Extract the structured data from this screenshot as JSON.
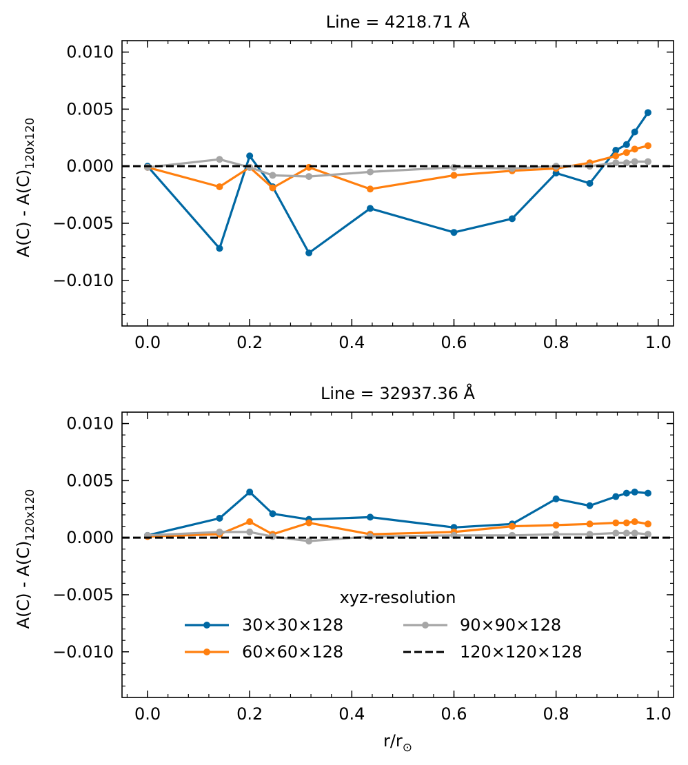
{
  "colors": {
    "series_30": "#0068a3",
    "series_60": "#ff7f0e",
    "series_90": "#a6a6a6",
    "series_120": "#000000"
  },
  "chart_data": [
    {
      "type": "line",
      "title": "Line = 4218.71 Å",
      "xlabel": "",
      "ylabel": "A(C) - A(C)",
      "ylabel_sub": "120x120",
      "xlim": [
        -0.05,
        1.03
      ],
      "ylim": [
        -0.014,
        0.011
      ],
      "xticks": [
        0.0,
        0.2,
        0.4,
        0.6,
        0.8,
        1.0
      ],
      "xtick_labels": [
        "0.0",
        "0.2",
        "0.4",
        "0.6",
        "0.8",
        "1.0"
      ],
      "yticks": [
        0.01,
        0.005,
        0.0,
        -0.005,
        -0.01
      ],
      "ytick_labels": [
        "0.010",
        "0.005",
        "0.000",
        "−0.005",
        "−0.010"
      ],
      "x": [
        0.0,
        0.141,
        0.2,
        0.245,
        0.316,
        0.436,
        0.6,
        0.714,
        0.8,
        0.866,
        0.917,
        0.938,
        0.954,
        0.98
      ],
      "series": [
        {
          "name": "30×30×128",
          "key": "s30",
          "values": [
            0.0,
            -0.0072,
            0.0009,
            -0.0018,
            -0.0076,
            -0.0037,
            -0.0058,
            -0.0046,
            -0.0006,
            -0.0015,
            0.0014,
            0.0019,
            0.003,
            0.0047
          ]
        },
        {
          "name": "60×60×128",
          "key": "s60",
          "values": [
            -0.0001,
            -0.0018,
            -0.0001,
            -0.0019,
            -0.0001,
            -0.002,
            -0.0008,
            -0.0004,
            -0.0002,
            0.0003,
            0.0009,
            0.0012,
            0.0015,
            0.0018
          ]
        },
        {
          "name": "90×90×128",
          "key": "s90",
          "values": [
            -0.0001,
            0.0006,
            -0.0001,
            -0.0008,
            -0.0009,
            -0.0005,
            -0.0001,
            -0.0002,
            0.0,
            0.0,
            0.0003,
            0.0003,
            0.0004,
            0.0004
          ]
        }
      ],
      "reference": {
        "name": "120×120×128",
        "value": 0.0
      }
    },
    {
      "type": "line",
      "title": "Line = 32937.36 Å",
      "xlabel": "r/r",
      "xlabel_sub": "⊙",
      "ylabel": "A(C) - A(C)",
      "ylabel_sub": "120x120",
      "xlim": [
        -0.05,
        1.03
      ],
      "ylim": [
        -0.014,
        0.011
      ],
      "xticks": [
        0.0,
        0.2,
        0.4,
        0.6,
        0.8,
        1.0
      ],
      "xtick_labels": [
        "0.0",
        "0.2",
        "0.4",
        "0.6",
        "0.8",
        "1.0"
      ],
      "yticks": [
        0.01,
        0.005,
        0.0,
        -0.005,
        -0.01
      ],
      "ytick_labels": [
        "0.010",
        "0.005",
        "0.000",
        "−0.005",
        "−0.010"
      ],
      "x": [
        0.0,
        0.141,
        0.2,
        0.245,
        0.316,
        0.436,
        0.6,
        0.714,
        0.8,
        0.866,
        0.917,
        0.938,
        0.954,
        0.98
      ],
      "series": [
        {
          "name": "30×30×128",
          "key": "s30",
          "values": [
            0.0002,
            0.0017,
            0.004,
            0.0021,
            0.0016,
            0.0018,
            0.0009,
            0.0012,
            0.0034,
            0.0028,
            0.0036,
            0.0039,
            0.004,
            0.0039
          ]
        },
        {
          "name": "60×60×128",
          "key": "s60",
          "values": [
            0.0001,
            0.0003,
            0.0014,
            0.0003,
            0.0013,
            0.0003,
            0.0005,
            0.001,
            0.0011,
            0.0012,
            0.0013,
            0.0013,
            0.0014,
            0.0012
          ]
        },
        {
          "name": "90×90×128",
          "key": "s90",
          "values": [
            0.0002,
            0.0005,
            0.0005,
            0.0001,
            -0.0003,
            0.0001,
            0.0002,
            0.0002,
            0.0003,
            0.0003,
            0.0004,
            0.0004,
            0.0004,
            0.0003
          ]
        }
      ],
      "reference": {
        "name": "120×120×128",
        "value": 0.0
      },
      "legend": {
        "title": "xyz-resolution",
        "placement": "lower-center",
        "entries": [
          "30×30×128",
          "90×90×128",
          "60×60×128",
          "120×120×128"
        ]
      }
    }
  ]
}
